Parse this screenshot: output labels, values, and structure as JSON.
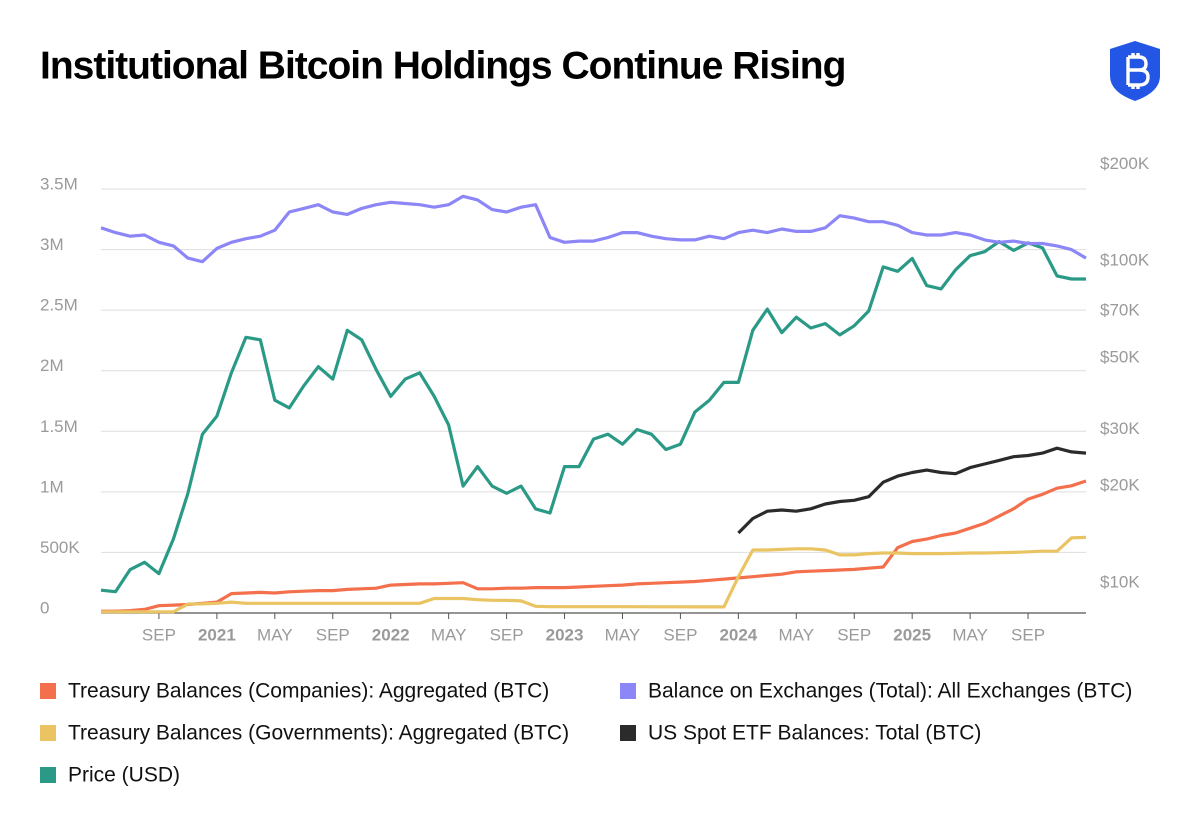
{
  "chart_data": {
    "type": "line",
    "title": "Institutional Bitcoin Holdings Continue Rising",
    "x": [
      "2020-05",
      "2020-06",
      "2020-07",
      "2020-08",
      "2020-09",
      "2020-10",
      "2020-11",
      "2020-12",
      "2021-01",
      "2021-02",
      "2021-03",
      "2021-04",
      "2021-05",
      "2021-06",
      "2021-07",
      "2021-08",
      "2021-09",
      "2021-10",
      "2021-11",
      "2021-12",
      "2022-01",
      "2022-02",
      "2022-03",
      "2022-04",
      "2022-05",
      "2022-06",
      "2022-07",
      "2022-08",
      "2022-09",
      "2022-10",
      "2022-11",
      "2022-12",
      "2023-01",
      "2023-02",
      "2023-03",
      "2023-04",
      "2023-05",
      "2023-06",
      "2023-07",
      "2023-08",
      "2023-09",
      "2023-10",
      "2023-11",
      "2023-12",
      "2024-01",
      "2024-02",
      "2024-03",
      "2024-04",
      "2024-05",
      "2024-06",
      "2024-07",
      "2024-08",
      "2024-09",
      "2024-10",
      "2024-11",
      "2024-12",
      "2025-01",
      "2025-02",
      "2025-03",
      "2025-04",
      "2025-05",
      "2025-06",
      "2025-07",
      "2025-08",
      "2025-09",
      "2025-10",
      "2025-11",
      "2025-12",
      "2026-01"
    ],
    "xlim": [
      "2020-05",
      "2026-01"
    ],
    "xticks": [
      {
        "value": "2020-09",
        "label": "SEP"
      },
      {
        "value": "2021-01",
        "label": "2021"
      },
      {
        "value": "2021-05",
        "label": "MAY"
      },
      {
        "value": "2021-09",
        "label": "SEP"
      },
      {
        "value": "2022-01",
        "label": "2022"
      },
      {
        "value": "2022-05",
        "label": "MAY"
      },
      {
        "value": "2022-09",
        "label": "SEP"
      },
      {
        "value": "2023-01",
        "label": "2023"
      },
      {
        "value": "2023-05",
        "label": "MAY"
      },
      {
        "value": "2023-09",
        "label": "SEP"
      },
      {
        "value": "2024-01",
        "label": "2024"
      },
      {
        "value": "2024-05",
        "label": "MAY"
      },
      {
        "value": "2024-09",
        "label": "SEP"
      },
      {
        "value": "2025-01",
        "label": "2025"
      },
      {
        "value": "2025-05",
        "label": "MAY"
      },
      {
        "value": "2025-09",
        "label": "SEP"
      }
    ],
    "ylim": [
      0,
      3500000
    ],
    "yticks": [
      0,
      {
        "value": 500000,
        "label": "500K"
      },
      {
        "value": 1000000,
        "label": "1M"
      },
      {
        "value": 1500000,
        "label": "1.5M"
      },
      {
        "value": 2000000,
        "label": "2M"
      },
      {
        "value": 2500000,
        "label": "2.5M"
      },
      {
        "value": 3000000,
        "label": "3M"
      },
      {
        "value": 3500000,
        "label": "3.5M"
      }
    ],
    "y2lim": [
      8070,
      167600
    ],
    "y2log": true,
    "y2ticks": [
      {
        "value": 10000,
        "label": "$10K"
      },
      {
        "value": 20000,
        "label": "$20K"
      },
      {
        "value": 30000,
        "label": "$30K"
      },
      {
        "value": 50000,
        "label": "$50K"
      },
      {
        "value": 70000,
        "label": "$70K"
      },
      {
        "value": 100000,
        "label": "$100K"
      },
      {
        "value": 200000,
        "label": "$200K"
      }
    ],
    "grid": true,
    "series": [
      {
        "name": "Treasury Balances (Companies): Aggregated (BTC)",
        "color": "#f4704d",
        "values": [
          15000,
          15000,
          20000,
          30000,
          60000,
          65000,
          70000,
          80000,
          90000,
          160000,
          165000,
          170000,
          165000,
          175000,
          180000,
          185000,
          185000,
          195000,
          200000,
          205000,
          230000,
          235000,
          240000,
          240000,
          245000,
          250000,
          200000,
          200000,
          205000,
          205000,
          210000,
          210000,
          210000,
          215000,
          220000,
          225000,
          230000,
          240000,
          245000,
          250000,
          255000,
          260000,
          270000,
          280000,
          290000,
          300000,
          310000,
          320000,
          340000,
          345000,
          350000,
          355000,
          360000,
          370000,
          380000,
          540000,
          590000,
          610000,
          640000,
          660000,
          700000,
          740000,
          800000,
          860000,
          940000,
          980000,
          1030000,
          1050000,
          1090000
        ]
      },
      {
        "name": "Balance on Exchanges (Total): All Exchanges (BTC)",
        "color": "#8c86f7",
        "values": [
          3180000,
          3140000,
          3110000,
          3120000,
          3060000,
          3030000,
          2930000,
          2900000,
          3010000,
          3060000,
          3090000,
          3110000,
          3160000,
          3310000,
          3340000,
          3370000,
          3310000,
          3290000,
          3340000,
          3370000,
          3390000,
          3380000,
          3370000,
          3350000,
          3370000,
          3440000,
          3410000,
          3330000,
          3310000,
          3350000,
          3370000,
          3100000,
          3060000,
          3070000,
          3070000,
          3100000,
          3140000,
          3140000,
          3110000,
          3090000,
          3080000,
          3080000,
          3110000,
          3090000,
          3140000,
          3160000,
          3140000,
          3170000,
          3150000,
          3150000,
          3180000,
          3280000,
          3260000,
          3230000,
          3230000,
          3200000,
          3140000,
          3120000,
          3120000,
          3140000,
          3120000,
          3080000,
          3060000,
          3070000,
          3050000,
          3050000,
          3030000,
          3000000,
          2930000
        ]
      },
      {
        "name": "Treasury Balances (Governments): Aggregated (BTC)",
        "color": "#eac462",
        "values": [
          10000,
          10000,
          10000,
          10000,
          10000,
          10000,
          74000,
          75000,
          80000,
          90000,
          80000,
          80000,
          80000,
          80000,
          80000,
          80000,
          80000,
          80000,
          80000,
          80000,
          80000,
          80000,
          80000,
          120000,
          120000,
          120000,
          110000,
          105000,
          105000,
          100000,
          55000,
          52000,
          52000,
          52000,
          52000,
          52000,
          52000,
          52000,
          51000,
          51000,
          51000,
          50000,
          50000,
          50000,
          300000,
          520000,
          520000,
          525000,
          530000,
          530000,
          520000,
          480000,
          480000,
          490000,
          495000,
          495000,
          490000,
          490000,
          490000,
          492000,
          495000,
          495000,
          498000,
          500000,
          505000,
          510000,
          510000,
          620000,
          625000
        ]
      },
      {
        "name": "US Spot ETF Balances: Total (BTC)",
        "color": "#2b2b2b",
        "values": [
          null,
          null,
          null,
          null,
          null,
          null,
          null,
          null,
          null,
          null,
          null,
          null,
          null,
          null,
          null,
          null,
          null,
          null,
          null,
          null,
          null,
          null,
          null,
          null,
          null,
          null,
          null,
          null,
          null,
          null,
          null,
          null,
          null,
          null,
          null,
          null,
          null,
          null,
          null,
          null,
          null,
          null,
          null,
          null,
          660000,
          780000,
          840000,
          850000,
          840000,
          860000,
          900000,
          920000,
          930000,
          960000,
          1080000,
          1130000,
          1160000,
          1180000,
          1160000,
          1150000,
          1200000,
          1230000,
          1260000,
          1290000,
          1300000,
          1320000,
          1360000,
          1330000,
          1320000
        ]
      },
      {
        "name": "Price (USD)",
        "color": "#2a9a86",
        "axis": "y2",
        "values": [
          9500,
          9400,
          11000,
          11600,
          10700,
          13700,
          19000,
          29000,
          33000,
          45000,
          58000,
          57000,
          37000,
          35000,
          41000,
          47000,
          43000,
          61000,
          57000,
          46000,
          38000,
          43000,
          45000,
          38000,
          31000,
          20000,
          23000,
          20000,
          19000,
          20000,
          17000,
          16500,
          23000,
          23000,
          28000,
          29000,
          27000,
          30000,
          29000,
          26000,
          27000,
          34000,
          37000,
          42000,
          42000,
          61000,
          71000,
          60000,
          67000,
          62000,
          64000,
          59000,
          63000,
          70000,
          96000,
          93000,
          102000,
          84000,
          82000,
          94000,
          104000,
          107000,
          115000,
          108000,
          114000,
          110000,
          90000,
          88000,
          88000
        ]
      }
    ]
  }
}
